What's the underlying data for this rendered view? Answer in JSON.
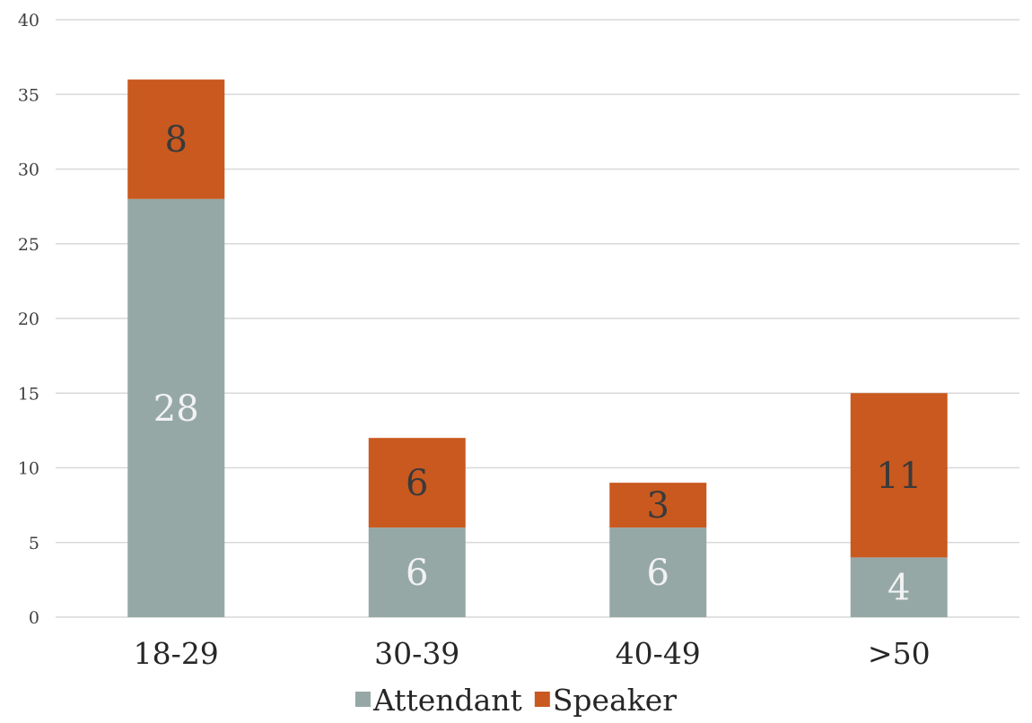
{
  "chart_data": {
    "type": "bar",
    "stacked": true,
    "categories": [
      "18-29",
      "30-39",
      "40-49",
      ">50"
    ],
    "series": [
      {
        "name": "Attendant",
        "values": [
          28,
          6,
          6,
          4
        ],
        "color": "#95a8a6",
        "label_color": "#f2f2f2"
      },
      {
        "name": "Speaker",
        "values": [
          8,
          6,
          3,
          11
        ],
        "color": "#c9591f",
        "label_color": "#3a3a3a"
      }
    ],
    "title": "",
    "xlabel": "",
    "ylabel": "",
    "ylim": [
      0,
      40
    ],
    "yticks": [
      0,
      5,
      10,
      15,
      20,
      25,
      30,
      35,
      40
    ],
    "grid": true,
    "legend_position": "bottom"
  }
}
